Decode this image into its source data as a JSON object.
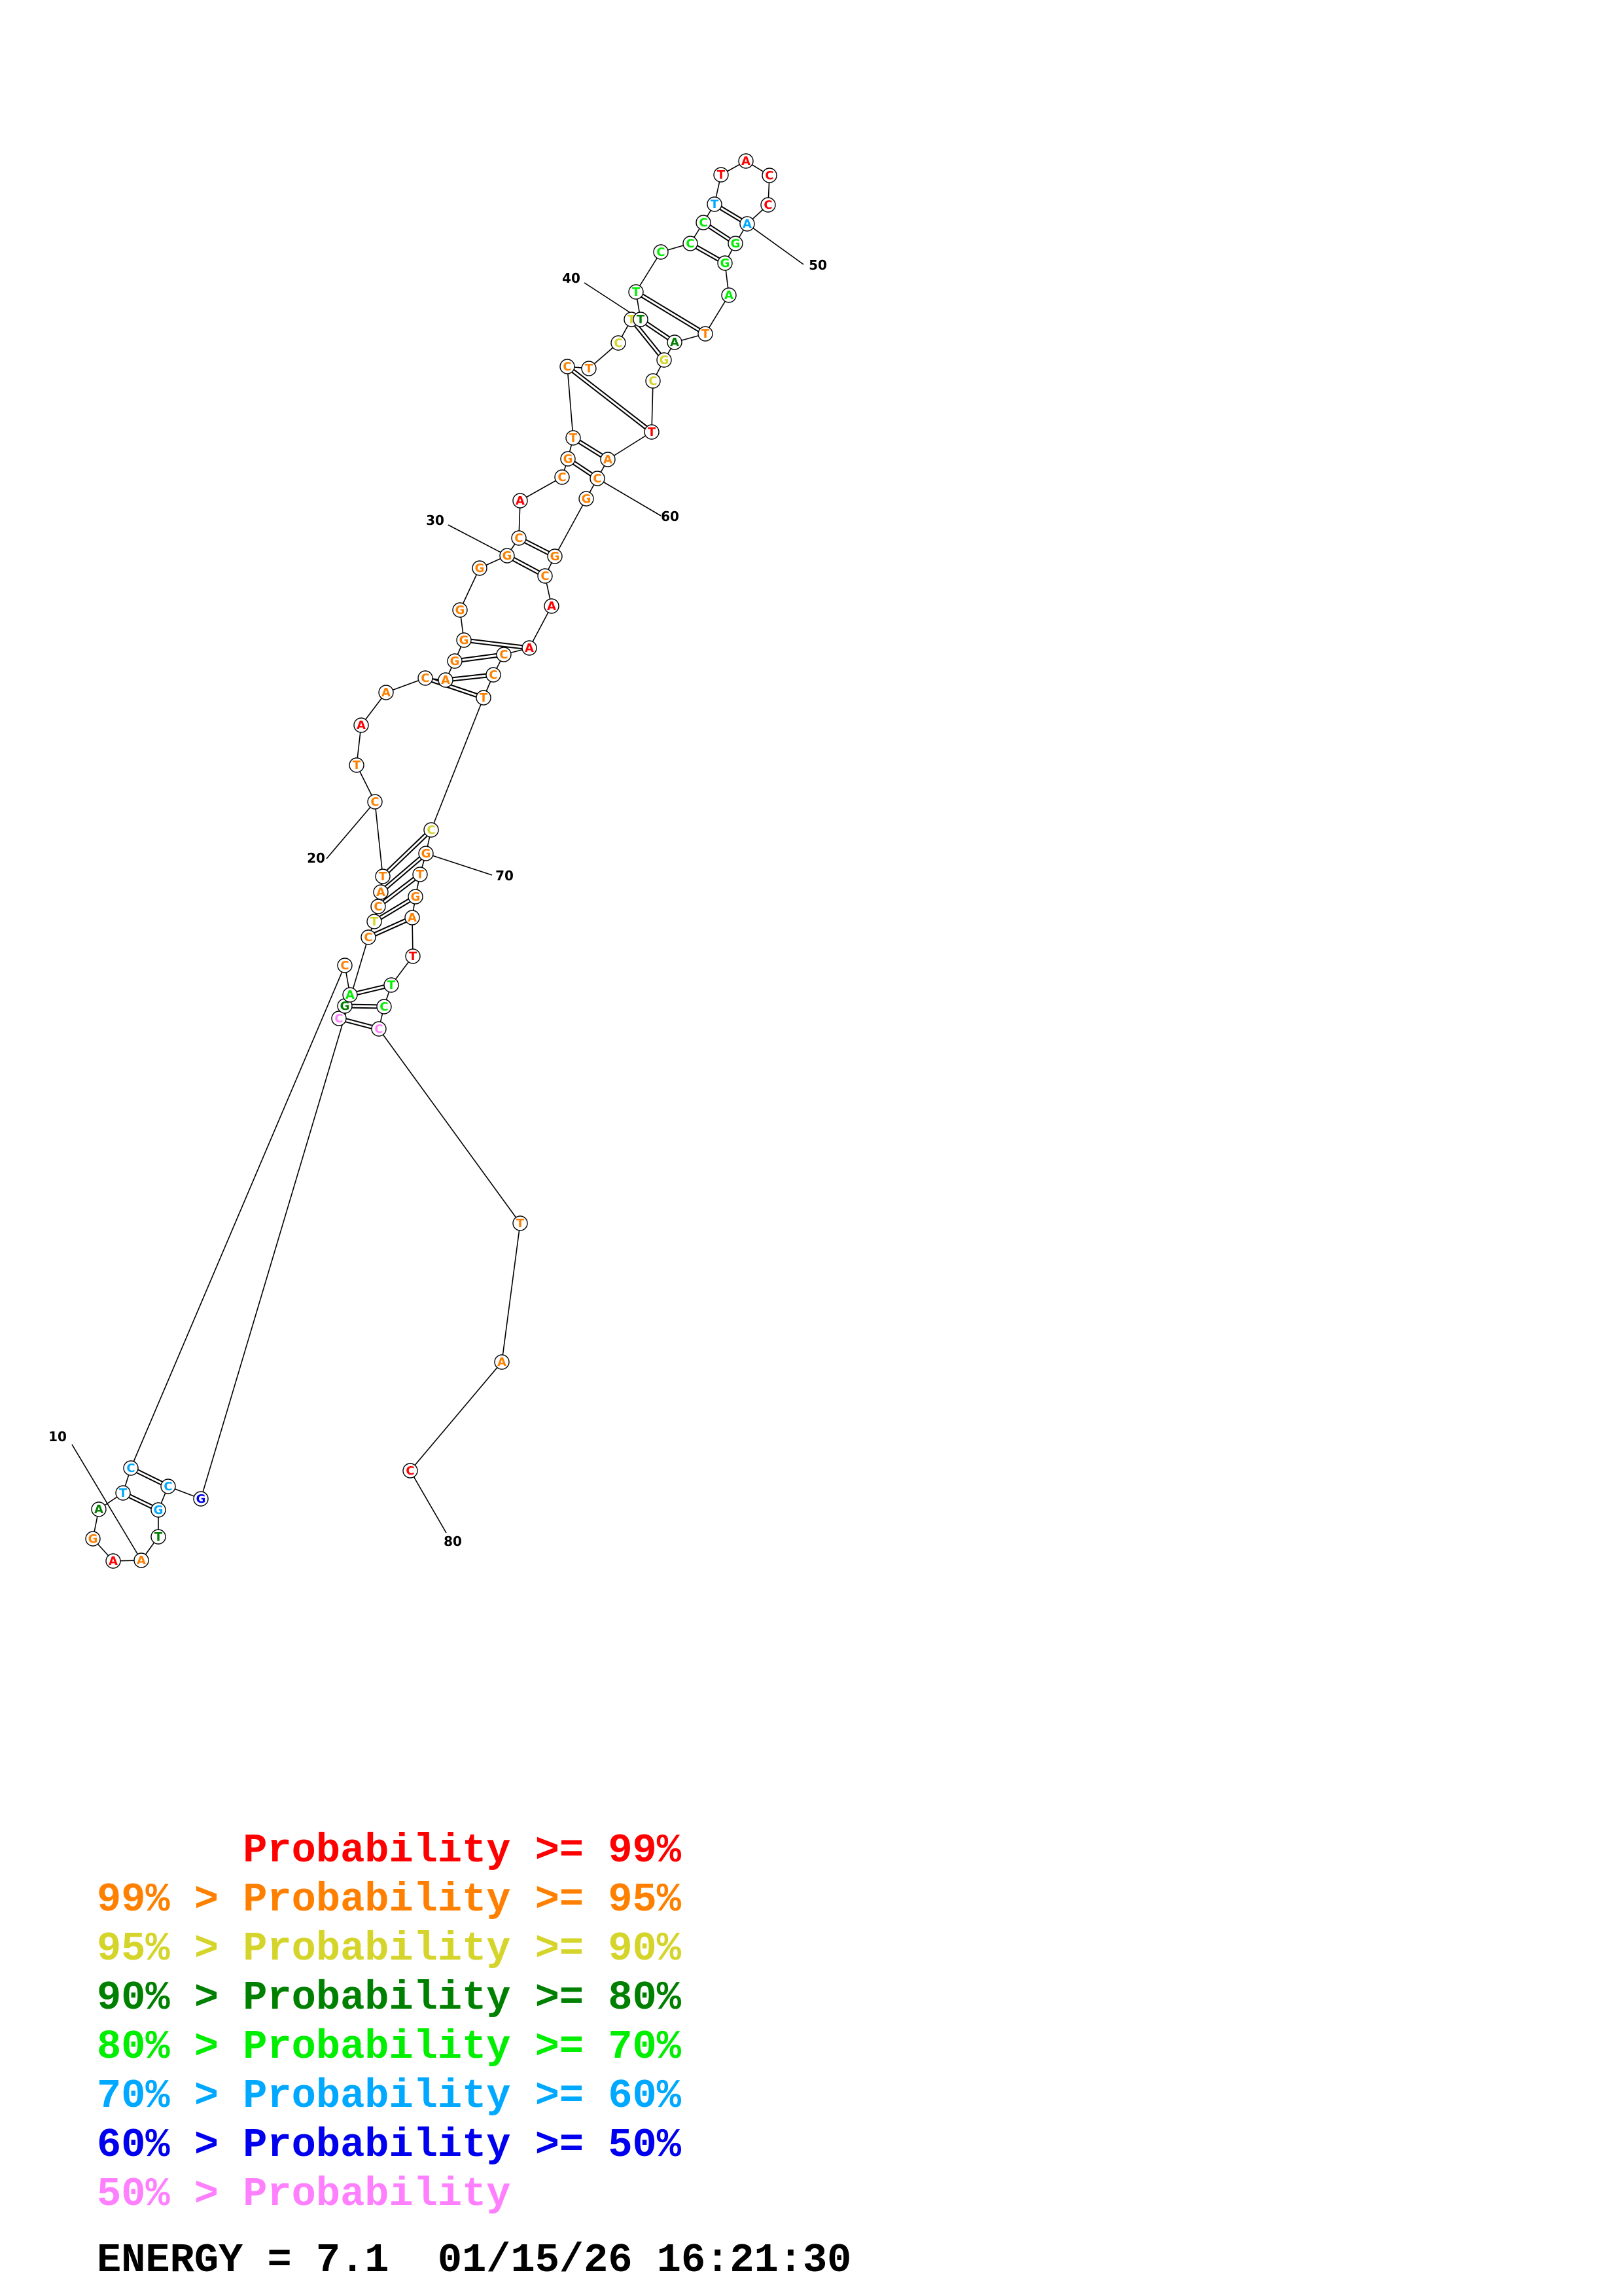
{
  "colors": {
    "p99": "#ff0000",
    "p95": "#ff8000",
    "p90": "#d4d42a",
    "p80": "#008000",
    "p70": "#00ee00",
    "p60": "#00a8ff",
    "p50": "#0000ee",
    "plow": "#ff80ff"
  },
  "structure": {
    "bases": [
      {
        "n": 1,
        "b": "C",
        "c": "plow"
      },
      {
        "n": 2,
        "b": "G",
        "c": "p80"
      },
      {
        "n": 3,
        "b": "A",
        "c": "p70"
      },
      {
        "n": 4,
        "b": "C",
        "c": "p95"
      },
      {
        "n": 5,
        "b": "C",
        "c": "p60"
      },
      {
        "n": 6,
        "b": "T",
        "c": "p60"
      },
      {
        "n": 7,
        "b": "A",
        "c": "p80"
      },
      {
        "n": 8,
        "b": "G",
        "c": "p95"
      },
      {
        "n": 9,
        "b": "A",
        "c": "p99"
      },
      {
        "n": 10,
        "b": "A",
        "c": "p95"
      },
      {
        "n": 11,
        "b": "T",
        "c": "p80"
      },
      {
        "n": 12,
        "b": "G",
        "c": "p60"
      },
      {
        "n": 13,
        "b": "C",
        "c": "p60"
      },
      {
        "n": 14,
        "b": "G",
        "c": "p50"
      },
      {
        "n": 15,
        "b": "C",
        "c": "p95"
      },
      {
        "n": 16,
        "b": "T",
        "c": "p90"
      },
      {
        "n": 17,
        "b": "C",
        "c": "p95"
      },
      {
        "n": 18,
        "b": "A",
        "c": "p95"
      },
      {
        "n": 19,
        "b": "T",
        "c": "p95"
      },
      {
        "n": 20,
        "b": "C",
        "c": "p95"
      },
      {
        "n": 21,
        "b": "T",
        "c": "p95"
      },
      {
        "n": 22,
        "b": "A",
        "c": "p99"
      },
      {
        "n": 23,
        "b": "A",
        "c": "p95"
      },
      {
        "n": 24,
        "b": "C",
        "c": "p95"
      },
      {
        "n": 25,
        "b": "A",
        "c": "p95"
      },
      {
        "n": 26,
        "b": "G",
        "c": "p95"
      },
      {
        "n": 27,
        "b": "G",
        "c": "p95"
      },
      {
        "n": 28,
        "b": "G",
        "c": "p95"
      },
      {
        "n": 29,
        "b": "G",
        "c": "p95"
      },
      {
        "n": 30,
        "b": "G",
        "c": "p95"
      },
      {
        "n": 31,
        "b": "C",
        "c": "p95"
      },
      {
        "n": 32,
        "b": "A",
        "c": "p99"
      },
      {
        "n": 33,
        "b": "C",
        "c": "p95"
      },
      {
        "n": 34,
        "b": "G",
        "c": "p95"
      },
      {
        "n": 35,
        "b": "T",
        "c": "p95"
      },
      {
        "n": 36,
        "b": "C",
        "c": "p95"
      },
      {
        "n": 37,
        "b": "T",
        "c": "p95"
      },
      {
        "n": 38,
        "b": "C",
        "c": "p90"
      },
      {
        "n": 39,
        "b": "T",
        "c": "p90"
      },
      {
        "n": 40,
        "b": "T",
        "c": "p80"
      },
      {
        "n": 41,
        "b": "T",
        "c": "p70"
      },
      {
        "n": 42,
        "b": "C",
        "c": "p70"
      },
      {
        "n": 43,
        "b": "C",
        "c": "p70"
      },
      {
        "n": 44,
        "b": "C",
        "c": "p70"
      },
      {
        "n": 45,
        "b": "T",
        "c": "p60"
      },
      {
        "n": 46,
        "b": "T",
        "c": "p99"
      },
      {
        "n": 47,
        "b": "A",
        "c": "p99"
      },
      {
        "n": 48,
        "b": "C",
        "c": "p99"
      },
      {
        "n": 49,
        "b": "C",
        "c": "p99"
      },
      {
        "n": 50,
        "b": "A",
        "c": "p60"
      },
      {
        "n": 51,
        "b": "G",
        "c": "p70"
      },
      {
        "n": 52,
        "b": "G",
        "c": "p70"
      },
      {
        "n": 53,
        "b": "A",
        "c": "p70"
      },
      {
        "n": 54,
        "b": "T",
        "c": "p95"
      },
      {
        "n": 55,
        "b": "A",
        "c": "p80"
      },
      {
        "n": 56,
        "b": "G",
        "c": "p90"
      },
      {
        "n": 57,
        "b": "C",
        "c": "p90"
      },
      {
        "n": 58,
        "b": "T",
        "c": "p99"
      },
      {
        "n": 59,
        "b": "A",
        "c": "p95"
      },
      {
        "n": 60,
        "b": "C",
        "c": "p95"
      },
      {
        "n": 61,
        "b": "G",
        "c": "p95"
      },
      {
        "n": 62,
        "b": "G",
        "c": "p95"
      },
      {
        "n": 63,
        "b": "C",
        "c": "p95"
      },
      {
        "n": 64,
        "b": "A",
        "c": "p99"
      },
      {
        "n": 65,
        "b": "A",
        "c": "p99"
      },
      {
        "n": 66,
        "b": "C",
        "c": "p95"
      },
      {
        "n": 67,
        "b": "C",
        "c": "p95"
      },
      {
        "n": 68,
        "b": "T",
        "c": "p95"
      },
      {
        "n": 69,
        "b": "C",
        "c": "p90"
      },
      {
        "n": 70,
        "b": "G",
        "c": "p95"
      },
      {
        "n": 71,
        "b": "T",
        "c": "p95"
      },
      {
        "n": 72,
        "b": "G",
        "c": "p95"
      },
      {
        "n": 73,
        "b": "A",
        "c": "p95"
      },
      {
        "n": 74,
        "b": "T",
        "c": "p99"
      },
      {
        "n": 75,
        "b": "T",
        "c": "p70"
      },
      {
        "n": 76,
        "b": "C",
        "c": "p70"
      },
      {
        "n": 77,
        "b": "C",
        "c": "plow"
      },
      {
        "n": 78,
        "b": "T",
        "c": "p95"
      },
      {
        "n": 79,
        "b": "A",
        "c": "p95"
      },
      {
        "n": 80,
        "b": "C",
        "c": "p99"
      }
    ],
    "pairs": [
      [
        1,
        77
      ],
      [
        2,
        76
      ],
      [
        3,
        75
      ],
      [
        5,
        13
      ],
      [
        6,
        12
      ],
      [
        15,
        73
      ],
      [
        16,
        72
      ],
      [
        17,
        71
      ],
      [
        18,
        70
      ],
      [
        19,
        69
      ],
      [
        24,
        68
      ],
      [
        25,
        67
      ],
      [
        26,
        66
      ],
      [
        27,
        65
      ],
      [
        30,
        63
      ],
      [
        31,
        62
      ],
      [
        34,
        60
      ],
      [
        35,
        59
      ],
      [
        36,
        58
      ],
      [
        39,
        56
      ],
      [
        40,
        55
      ],
      [
        41,
        54
      ],
      [
        43,
        52
      ],
      [
        44,
        51
      ],
      [
        45,
        50
      ]
    ],
    "tick_labels": [
      "10",
      "20",
      "30",
      "40",
      "50",
      "60",
      "70",
      "80"
    ]
  },
  "legend": [
    {
      "prefix": "",
      "label": "Probability >= 99%",
      "color": "p99"
    },
    {
      "prefix": "99% > ",
      "label": "Probability >= 95%",
      "color": "p95"
    },
    {
      "prefix": "95% > ",
      "label": "Probability >= 90%",
      "color": "p90"
    },
    {
      "prefix": "90% > ",
      "label": "Probability >= 80%",
      "color": "p80"
    },
    {
      "prefix": "80% > ",
      "label": "Probability >= 70%",
      "color": "p70"
    },
    {
      "prefix": "70% > ",
      "label": "Probability >= 60%",
      "color": "p60"
    },
    {
      "prefix": "60% > ",
      "label": "Probability >= 50%",
      "color": "p50"
    },
    {
      "prefix": "50% > ",
      "label": "Probability",
      "color": "plow"
    }
  ],
  "energy_label": "ENERGY = 7.1  01/15/26 16:21:30"
}
